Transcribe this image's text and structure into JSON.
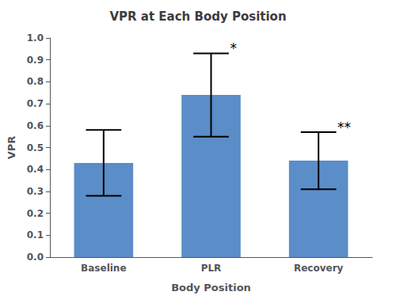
{
  "chart_data": {
    "type": "bar",
    "title": "VPR at Each Body Position",
    "xlabel": "Body Position",
    "ylabel": "VPR",
    "categories": [
      "Baseline",
      "PLR",
      "Recovery"
    ],
    "values": [
      0.43,
      0.74,
      0.44
    ],
    "errors": [
      0.15,
      0.19,
      0.13
    ],
    "color": "#5B8DC8",
    "annotations": [
      {
        "category": "PLR",
        "text": "*"
      },
      {
        "category": "Recovery",
        "text": "**"
      }
    ],
    "ylim": [
      0.0,
      1.0
    ],
    "yticks": [
      {
        "value": 0.0,
        "label": "0.0"
      },
      0.1,
      0.2,
      0.3,
      0.4,
      0.5,
      0.6,
      0.7,
      0.8,
      0.9,
      {
        "value": 1.0,
        "label": "1.0"
      }
    ],
    "grid": false
  }
}
